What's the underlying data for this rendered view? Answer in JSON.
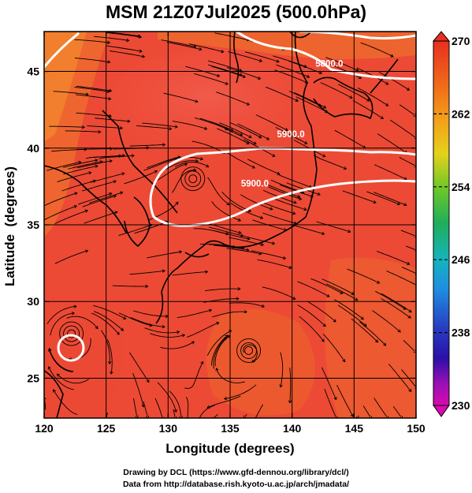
{
  "title": "MSM 21Z07Jul2025 (500.0hPa)",
  "chart_data": {
    "type": "map",
    "xlabel": "Longitude (degrees)",
    "ylabel": "Latitude  (degrees)",
    "x_ticks": [
      "120",
      "125",
      "130",
      "135",
      "140",
      "145",
      "150"
    ],
    "y_ticks": [
      "25",
      "30",
      "35",
      "40",
      "45"
    ],
    "xlim": [
      120,
      150
    ],
    "ylim": [
      22.4,
      47.6
    ],
    "grid": true,
    "colorbar": {
      "ticks": [
        "270",
        "262",
        "254",
        "246",
        "238",
        "230"
      ],
      "range": [
        230,
        270
      ]
    },
    "contours": [
      {
        "label": "5800.0",
        "lon": 143.0,
        "lat": 45.3
      },
      {
        "label": "5900.0",
        "lon": 139.9,
        "lat": 40.7
      },
      {
        "label": "5900.0",
        "lon": 137.0,
        "lat": 37.5
      }
    ],
    "vortex_centers": [
      {
        "lon": 122.2,
        "lat": 27.9
      },
      {
        "lon": 136.5,
        "lat": 26.8
      },
      {
        "lon": 132.0,
        "lat": 38.0
      }
    ]
  },
  "footer": {
    "line1": "Drawing by DCL (https://www.gfd-dennou.org/library/dcl/)",
    "line2": "Data from http://database.rish.kyoto-u.ac.jp/arch/jmadata/"
  }
}
